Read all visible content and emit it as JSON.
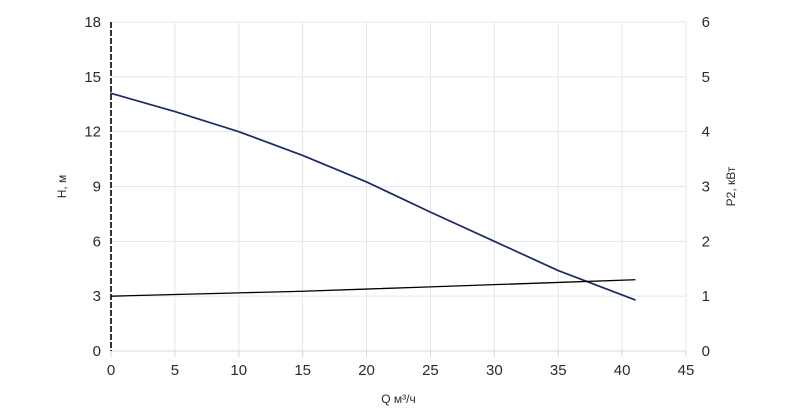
{
  "chart_data": {
    "type": "line",
    "title": "",
    "xlabel": "Q м³/ч",
    "ylabel": "H, м",
    "y2label": "P2, кВт",
    "xlim": [
      0,
      45
    ],
    "ylim": [
      0,
      18
    ],
    "y2lim": [
      0,
      6
    ],
    "xticks": [
      0,
      5,
      10,
      15,
      20,
      25,
      30,
      35,
      40,
      45
    ],
    "yticks": [
      0,
      3,
      6,
      9,
      12,
      15,
      18
    ],
    "y2ticks": [
      0,
      1,
      2,
      3,
      4,
      5,
      6
    ],
    "grid": true,
    "legend": "none",
    "series": [
      {
        "axis": "left",
        "color": "#1b2a63",
        "x": [
          0,
          5,
          10,
          15,
          20,
          25,
          30,
          35,
          41
        ],
        "y": [
          14.1,
          13.1,
          12.0,
          10.7,
          9.25,
          7.6,
          6.0,
          4.4,
          2.8
        ]
      },
      {
        "axis": "right",
        "color": "#000000",
        "x": [
          0,
          5,
          10,
          15,
          20,
          25,
          30,
          35,
          41
        ],
        "y": [
          1.0,
          1.03,
          1.06,
          1.09,
          1.13,
          1.17,
          1.21,
          1.25,
          1.3
        ]
      }
    ]
  }
}
